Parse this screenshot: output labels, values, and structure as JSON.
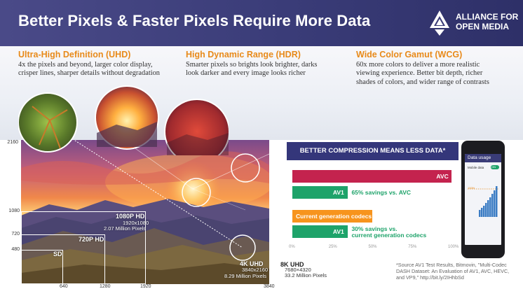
{
  "header": {
    "title": "Better Pixels & Faster Pixels Require More Data",
    "logo_line1": "ALLIANCE FOR",
    "logo_line2": "OPEN MEDIA"
  },
  "features": {
    "uhd": {
      "title": "Ultra-High Definition (UHD)",
      "line1": "4x the pixels and beyond, larger color display,",
      "line2": "crisper lines, sharper details without degradation"
    },
    "hdr": {
      "title": "High Dynamic Range (HDR)",
      "line1": "Smarter pixels so brights look brighter, darks",
      "line2": "look darker and every image looks richer"
    },
    "wcg": {
      "title": "Wide Color Gamut (WCG)",
      "line1": "60x more colors to deliver a more realistic",
      "line2": "viewing experience. Better bit depth, richer",
      "line3": "shades of colors, and wider range of contrasts"
    }
  },
  "resolutions": {
    "y_ticks": [
      "2160",
      "1080",
      "720",
      "480"
    ],
    "x_ticks": [
      "640",
      "1280",
      "1920",
      "3840"
    ],
    "sd": "SD",
    "hd720": "720P HD",
    "hd1080": "1080P HD",
    "hd1080_dims": "1920x1080",
    "hd1080_pixels": "2.07 Million Pixels",
    "uhd4k": "4K UHD",
    "uhd4k_dims": "3840x2160",
    "uhd4k_pixels": "8.29 Million Pixels",
    "uhd8k": "8K UHD",
    "uhd8k_dims": "7680×4320",
    "uhd8k_pixels": "33.2 Million Pixels"
  },
  "chart_data": {
    "type": "bar",
    "title": "BETTER COMPRESSION MEANS LESS DATA*",
    "x_ticks": [
      "0%",
      "25%",
      "50%",
      "75%",
      "100%"
    ],
    "xlim": [
      0,
      100
    ],
    "bars": [
      {
        "label": "AVC",
        "value": 100,
        "color": "#c4234e",
        "annotation": ""
      },
      {
        "label": "AV1",
        "value": 35,
        "color": "#1ea36a",
        "annotation": "65% savings vs. AVC"
      },
      {
        "label": "Current generation codecs",
        "value": 50,
        "color": "#f7941d",
        "annotation": ""
      },
      {
        "label": "AV1",
        "value": 35,
        "color": "#1ea36a",
        "annotation": "30% savings vs.",
        "annotation2": "current generation codecs"
      }
    ]
  },
  "phone": {
    "title": "Data usage",
    "row_label": "Mobile data",
    "toggle": "ON",
    "level_label": "100%"
  },
  "source_note": "*Source AV1 Test Results, Bitmovin, \"Multi-Codec DASH Dataset: An Evaluation of AV1, AVC, HEVC, and VP9,\" http://bit.ly/2IHhbSd",
  "colors": {
    "header": "#3a3c78",
    "feature_title": "#e88a1a",
    "avc": "#c4234e",
    "av1": "#1ea36a",
    "current": "#f7941d"
  }
}
